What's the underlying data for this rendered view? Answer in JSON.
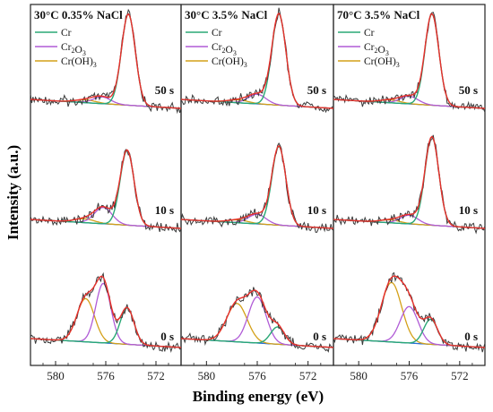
{
  "chart_data": {
    "type": "line",
    "ylabel": "Intensity (a.u.)",
    "xlabel": "Binding energy (eV)",
    "x_reversed": true,
    "xlim": [
      570,
      582
    ],
    "xticks": [
      580,
      576,
      572
    ],
    "legend_entries": [
      "Cr",
      "Cr2O3",
      "Cr(OH)3"
    ],
    "legend_display": [
      {
        "base": "Cr",
        "sub": ""
      },
      {
        "base": "Cr",
        "sub": "2",
        "base2": "O",
        "sub2": "3"
      },
      {
        "base": "Cr(OH)",
        "sub": "3",
        "base2": "",
        "sub2": ""
      }
    ],
    "series_colors": {
      "experimental": "#3a3a3a",
      "fit_envelope": "#e8302c",
      "Cr": "#2aa876",
      "Cr2O3": "#b05bd6",
      "Cr(OH)3": "#d4a018",
      "background": "#2a6fd6"
    },
    "columns": [
      {
        "title": "30°C 0.35% NaCl",
        "panels": [
          {
            "time": "50 s",
            "peaks": {
              "Cr": {
                "center": 574.2,
                "amp": 0.95,
                "width": 0.55
              },
              "Cr2O3": {
                "center": 576.3,
                "amp": 0.07,
                "width": 0.7
              },
              "Cr(OH)3": {
                "center": 577.6,
                "amp": 0.03,
                "width": 0.8
              }
            }
          },
          {
            "time": "10 s",
            "peaks": {
              "Cr": {
                "center": 574.3,
                "amp": 0.78,
                "width": 0.55
              },
              "Cr2O3": {
                "center": 576.2,
                "amp": 0.17,
                "width": 0.7
              },
              "Cr(OH)3": {
                "center": 577.7,
                "amp": 0.04,
                "width": 0.8
              }
            }
          },
          {
            "time": "0 s",
            "peaks": {
              "Cr": {
                "center": 574.3,
                "amp": 0.38,
                "width": 0.55
              },
              "Cr2O3": {
                "center": 576.2,
                "amp": 0.62,
                "width": 0.6
              },
              "Cr(OH)3": {
                "center": 577.6,
                "amp": 0.45,
                "width": 0.7
              }
            }
          }
        ]
      },
      {
        "title": "30°C 3.5% NaCl",
        "panels": [
          {
            "time": "50 s",
            "peaks": {
              "Cr": {
                "center": 574.3,
                "amp": 0.95,
                "width": 0.55
              },
              "Cr2O3": {
                "center": 576.0,
                "amp": 0.1,
                "width": 0.7
              },
              "Cr(OH)3": {
                "center": 577.5,
                "amp": 0.03,
                "width": 0.8
              }
            }
          },
          {
            "time": "10 s",
            "peaks": {
              "Cr": {
                "center": 574.3,
                "amp": 0.82,
                "width": 0.55
              },
              "Cr2O3": {
                "center": 576.0,
                "amp": 0.1,
                "width": 0.7
              },
              "Cr(OH)3": {
                "center": 577.5,
                "amp": 0.03,
                "width": 0.8
              }
            }
          },
          {
            "time": "0 s",
            "peaks": {
              "Cr": {
                "center": 574.4,
                "amp": 0.18,
                "width": 0.55
              },
              "Cr2O3": {
                "center": 576.0,
                "amp": 0.48,
                "width": 0.7
              },
              "Cr(OH)3": {
                "center": 577.6,
                "amp": 0.4,
                "width": 0.8
              }
            }
          }
        ]
      },
      {
        "title": "70°C 3.5% NaCl",
        "panels": [
          {
            "time": "50 s",
            "peaks": {
              "Cr": {
                "center": 574.2,
                "amp": 0.95,
                "width": 0.55
              },
              "Cr2O3": {
                "center": 576.0,
                "amp": 0.08,
                "width": 0.7
              },
              "Cr(OH)3": {
                "center": 577.5,
                "amp": 0.03,
                "width": 0.8
              }
            }
          },
          {
            "time": "10 s",
            "peaks": {
              "Cr": {
                "center": 574.2,
                "amp": 0.92,
                "width": 0.55
              },
              "Cr2O3": {
                "center": 576.0,
                "amp": 0.09,
                "width": 0.7
              },
              "Cr(OH)3": {
                "center": 577.5,
                "amp": 0.03,
                "width": 0.8
              }
            }
          },
          {
            "time": "0 s",
            "peaks": {
              "Cr": {
                "center": 574.3,
                "amp": 0.26,
                "width": 0.55
              },
              "Cr2O3": {
                "center": 576.0,
                "amp": 0.38,
                "width": 0.7
              },
              "Cr(OH)3": {
                "center": 577.4,
                "amp": 0.62,
                "width": 0.8
              }
            }
          }
        ]
      }
    ]
  }
}
